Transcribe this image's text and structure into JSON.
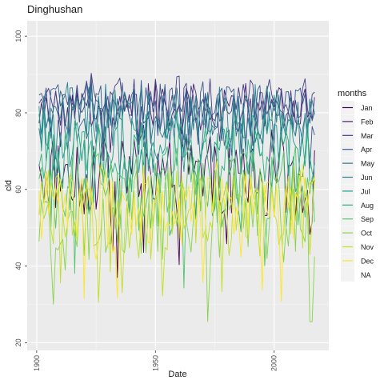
{
  "chart_data": {
    "type": "line",
    "title": "Dinghushan",
    "xlabel": "Date",
    "ylabel": "cld",
    "xlim": [
      1896,
      2023
    ],
    "ylim": [
      18,
      104
    ],
    "x_ticks": [
      1900,
      1950,
      2000
    ],
    "y_ticks": [
      20,
      40,
      60,
      80,
      100
    ],
    "grid": true,
    "legend_title": "months",
    "legend_position": "right",
    "series": [
      {
        "name": "Jan",
        "color": "#440154",
        "base": 64,
        "amp": 10,
        "min": 25,
        "max": 82
      },
      {
        "name": "Feb",
        "color": "#482173",
        "base": 81,
        "amp": 6,
        "min": 62,
        "max": 100
      },
      {
        "name": "Mar",
        "color": "#433E85",
        "base": 83,
        "amp": 6,
        "min": 66,
        "max": 97
      },
      {
        "name": "Apr",
        "color": "#38598C",
        "base": 82,
        "amp": 6,
        "min": 65,
        "max": 95
      },
      {
        "name": "May",
        "color": "#2D708E",
        "base": 79,
        "amp": 7,
        "min": 58,
        "max": 94
      },
      {
        "name": "Jun",
        "color": "#25858E",
        "base": 79,
        "amp": 7,
        "min": 60,
        "max": 94
      },
      {
        "name": "Jul",
        "color": "#1E9B8A",
        "base": 72,
        "amp": 8,
        "min": 52,
        "max": 92
      },
      {
        "name": "Aug",
        "color": "#2BB07F",
        "base": 68,
        "amp": 8,
        "min": 48,
        "max": 88
      },
      {
        "name": "Sep",
        "color": "#51C56A",
        "base": 60,
        "amp": 10,
        "min": 28,
        "max": 82
      },
      {
        "name": "Oct",
        "color": "#85D54A",
        "base": 53,
        "amp": 11,
        "min": 21,
        "max": 80
      },
      {
        "name": "Nov",
        "color": "#C2DF23",
        "base": 54,
        "amp": 10,
        "min": 30,
        "max": 78
      },
      {
        "name": "Dec",
        "color": "#FDE725",
        "base": 55,
        "amp": 10,
        "min": 28,
        "max": 78
      }
    ],
    "legend_na_label": "NA",
    "x_start": 1901,
    "x_end": 2017
  }
}
